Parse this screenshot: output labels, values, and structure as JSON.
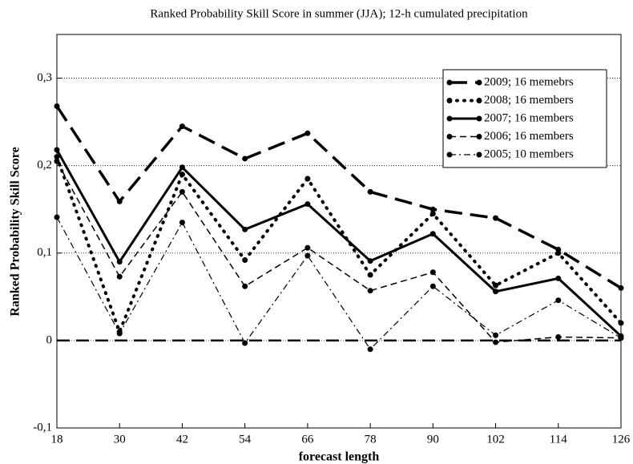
{
  "chart_data": {
    "type": "line",
    "title": "Ranked Probability Skill Score in summer (JJA); 12-h cumulated precipitation",
    "x_label": "forecast length",
    "y_label": "Ranked Probability Skill Score",
    "x": [
      18,
      30,
      42,
      54,
      66,
      78,
      90,
      102,
      114,
      126
    ],
    "xlim": [
      18,
      126
    ],
    "xticks": [
      18,
      30,
      42,
      54,
      66,
      78,
      90,
      102,
      114,
      126
    ],
    "ylim": [
      -0.1,
      0.35
    ],
    "yticks": [
      {
        "value": -0.1,
        "label": "-0,1"
      },
      0,
      {
        "value": 0.1,
        "label": "0,1"
      },
      {
        "value": 0.2,
        "label": "0,2"
      },
      {
        "value": 0.3,
        "label": "0,3"
      }
    ],
    "grid": true,
    "reference_line": 0,
    "legend": "upper right",
    "series": [
      {
        "name": "2009; 16 memebrs",
        "color": "#000000",
        "linestyle": "dashed-thick",
        "values": [
          0.268,
          0.159,
          0.245,
          0.208,
          0.237,
          0.17,
          0.15,
          0.14,
          0.104,
          0.06
        ]
      },
      {
        "name": "2008; 16 members",
        "color": "#000000",
        "linestyle": "dotted",
        "values": [
          0.21,
          0.01,
          0.19,
          0.092,
          0.185,
          0.075,
          0.145,
          0.063,
          0.1,
          0.02
        ]
      },
      {
        "name": "2007; 16 members",
        "color": "#000000",
        "linestyle": "solid",
        "values": [
          0.218,
          0.09,
          0.198,
          0.127,
          0.156,
          0.091,
          0.122,
          0.056,
          0.071,
          0.005
        ]
      },
      {
        "name": "2006; 16 members",
        "color": "#000000",
        "linestyle": "dashed",
        "values": [
          0.205,
          0.073,
          0.17,
          0.062,
          0.106,
          0.057,
          0.078,
          -0.002,
          0.004,
          0.003
        ]
      },
      {
        "name": "2005; 10 members",
        "color": "#000000",
        "linestyle": "dashdot",
        "values": [
          0.141,
          0.008,
          0.135,
          -0.003,
          0.097,
          -0.01,
          0.062,
          0.006,
          0.046,
          0.003
        ]
      }
    ]
  }
}
